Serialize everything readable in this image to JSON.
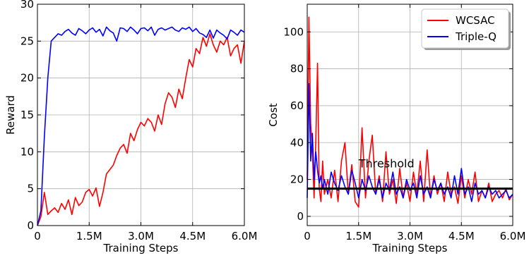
{
  "chart_data": [
    {
      "type": "line",
      "xlabel": "Training Steps",
      "ylabel": "Reward",
      "xlim": [
        0,
        6000000
      ],
      "ylim": [
        0,
        30
      ],
      "xticks": [
        0,
        1500000,
        3000000,
        4500000,
        6000000
      ],
      "xtick_labels": [
        "0",
        "1.5M",
        "3.0M",
        "4.5M",
        "6.0M"
      ],
      "yticks": [
        0,
        5,
        10,
        15,
        20,
        25,
        30
      ],
      "ytick_labels": [
        "0",
        "5",
        "10",
        "15",
        "20",
        "25",
        "30"
      ],
      "grid": true,
      "series": [
        {
          "color": "#ff0000",
          "x": [
            0,
            100000,
            200000,
            300000,
            400000,
            500000,
            600000,
            700000,
            800000,
            900000,
            1000000,
            1100000,
            1200000,
            1300000,
            1400000,
            1500000,
            1600000,
            1700000,
            1800000,
            1900000,
            2000000,
            2100000,
            2200000,
            2300000,
            2400000,
            2500000,
            2600000,
            2700000,
            2800000,
            2900000,
            3000000,
            3100000,
            3200000,
            3300000,
            3400000,
            3500000,
            3600000,
            3700000,
            3800000,
            3900000,
            4000000,
            4100000,
            4200000,
            4300000,
            4400000,
            4500000,
            4600000,
            4700000,
            4800000,
            4900000,
            5000000,
            5100000,
            5200000,
            5300000,
            5400000,
            5500000,
            5600000,
            5700000,
            5800000,
            5900000,
            6000000
          ],
          "y": [
            0,
            1.2,
            4.5,
            1.5,
            2.0,
            2.4,
            1.8,
            3.0,
            2.2,
            3.5,
            1.5,
            3.8,
            2.7,
            3.2,
            4.5,
            4.9,
            4.0,
            5.1,
            2.6,
            4.5,
            7.0,
            7.6,
            8.2,
            9.5,
            10.5,
            11.0,
            9.8,
            12.5,
            11.5,
            13.0,
            14.0,
            13.5,
            14.5,
            14.0,
            12.8,
            15.0,
            13.7,
            16.5,
            18.0,
            17.4,
            16.0,
            18.5,
            17.2,
            20.0,
            22.5,
            21.5,
            24.0,
            23.3,
            25.5,
            24.3,
            26.0,
            24.5,
            23.5,
            25.0,
            24.5,
            25.5,
            23.0,
            24.0,
            24.5,
            22.0,
            25.0
          ]
        },
        {
          "color": "#0000ff",
          "x": [
            0,
            100000,
            200000,
            300000,
            400000,
            500000,
            600000,
            700000,
            800000,
            900000,
            1000000,
            1100000,
            1200000,
            1300000,
            1400000,
            1500000,
            1600000,
            1700000,
            1800000,
            1900000,
            2000000,
            2100000,
            2200000,
            2300000,
            2400000,
            2500000,
            2600000,
            2700000,
            2800000,
            2900000,
            3000000,
            3100000,
            3200000,
            3300000,
            3400000,
            3500000,
            3600000,
            3700000,
            3800000,
            3900000,
            4000000,
            4100000,
            4200000,
            4300000,
            4400000,
            4500000,
            4600000,
            4700000,
            4800000,
            4900000,
            5000000,
            5100000,
            5200000,
            5300000,
            5400000,
            5500000,
            5600000,
            5700000,
            5800000,
            5900000,
            6000000
          ],
          "y": [
            0,
            2.0,
            12.0,
            20.0,
            25.0,
            25.5,
            26.0,
            25.8,
            26.3,
            26.6,
            26.1,
            25.8,
            26.7,
            26.4,
            26.0,
            26.5,
            26.8,
            26.2,
            26.6,
            25.7,
            26.9,
            26.4,
            26.1,
            25.0,
            26.8,
            26.7,
            26.3,
            26.9,
            26.5,
            26.0,
            26.7,
            26.8,
            26.4,
            26.9,
            25.8,
            26.6,
            26.8,
            26.5,
            26.7,
            26.9,
            26.5,
            26.3,
            26.8,
            26.6,
            26.9,
            26.3,
            26.7,
            26.1,
            25.9,
            25.5,
            26.5,
            25.4,
            26.5,
            26.1,
            25.8,
            25.3,
            26.5,
            26.2,
            25.8,
            26.5,
            26.2
          ]
        }
      ]
    },
    {
      "type": "line",
      "xlabel": "Training Steps",
      "ylabel": "Cost",
      "xlim": [
        0,
        6000000
      ],
      "ylim": [
        -5,
        115
      ],
      "xticks": [
        0,
        1500000,
        3000000,
        4500000,
        6000000
      ],
      "xtick_labels": [
        "0",
        "1.5M",
        "3.0M",
        "4.5M",
        "6.0M"
      ],
      "yticks": [
        0,
        20,
        40,
        60,
        80,
        100
      ],
      "ytick_labels": [
        "0",
        "20",
        "40",
        "60",
        "80",
        "100"
      ],
      "grid": true,
      "legend": "top-right",
      "threshold": {
        "value": 15,
        "label": "Threshold",
        "color": "#000000"
      },
      "series": [
        {
          "name": "WCSAC",
          "color": "#ff0000",
          "x": [
            0,
            50000,
            100000,
            150000,
            200000,
            250000,
            300000,
            350000,
            400000,
            450000,
            500000,
            600000,
            700000,
            800000,
            900000,
            1000000,
            1100000,
            1200000,
            1300000,
            1400000,
            1500000,
            1600000,
            1700000,
            1800000,
            1900000,
            2000000,
            2100000,
            2200000,
            2300000,
            2400000,
            2500000,
            2600000,
            2700000,
            2800000,
            2900000,
            3000000,
            3100000,
            3200000,
            3300000,
            3400000,
            3500000,
            3600000,
            3700000,
            3800000,
            3900000,
            4000000,
            4100000,
            4200000,
            4300000,
            4400000,
            4500000,
            4600000,
            4700000,
            4800000,
            4900000,
            5000000,
            5100000,
            5200000,
            5300000,
            5400000,
            5500000,
            5600000,
            5700000,
            5800000,
            5900000,
            6000000
          ],
          "y": [
            20,
            108,
            50,
            35,
            10,
            40,
            83,
            15,
            8,
            30,
            12,
            20,
            10,
            25,
            8,
            30,
            40,
            12,
            28,
            8,
            5,
            48,
            10,
            30,
            44,
            12,
            22,
            8,
            35,
            12,
            20,
            7,
            26,
            10,
            18,
            8,
            24,
            12,
            30,
            8,
            36,
            10,
            22,
            12,
            18,
            8,
            24,
            12,
            16,
            7,
            22,
            10,
            20,
            12,
            24,
            8,
            14,
            10,
            18,
            8,
            12,
            14,
            10,
            15,
            9,
            12
          ]
        },
        {
          "name": "Triple-Q",
          "color": "#0000ff",
          "x": [
            0,
            50000,
            100000,
            150000,
            200000,
            250000,
            300000,
            350000,
            400000,
            450000,
            500000,
            600000,
            700000,
            800000,
            900000,
            1000000,
            1100000,
            1200000,
            1300000,
            1400000,
            1500000,
            1600000,
            1700000,
            1800000,
            1900000,
            2000000,
            2100000,
            2200000,
            2300000,
            2400000,
            2500000,
            2600000,
            2700000,
            2800000,
            2900000,
            3000000,
            3100000,
            3200000,
            3300000,
            3400000,
            3500000,
            3600000,
            3700000,
            3800000,
            3900000,
            4000000,
            4100000,
            4200000,
            4300000,
            4400000,
            4500000,
            4600000,
            4700000,
            4800000,
            4900000,
            5000000,
            5100000,
            5200000,
            5300000,
            5400000,
            5500000,
            5600000,
            5700000,
            5800000,
            5900000,
            6000000
          ],
          "y": [
            10,
            72,
            30,
            45,
            20,
            35,
            25,
            18,
            22,
            15,
            20,
            12,
            24,
            18,
            14,
            22,
            16,
            12,
            25,
            18,
            10,
            20,
            14,
            22,
            16,
            12,
            20,
            10,
            18,
            14,
            24,
            12,
            16,
            10,
            20,
            14,
            18,
            10,
            22,
            12,
            16,
            10,
            20,
            14,
            18,
            12,
            16,
            10,
            22,
            12,
            26,
            12,
            16,
            8,
            18,
            12,
            14,
            10,
            16,
            12,
            14,
            10,
            12,
            14,
            10,
            12
          ]
        }
      ]
    }
  ]
}
